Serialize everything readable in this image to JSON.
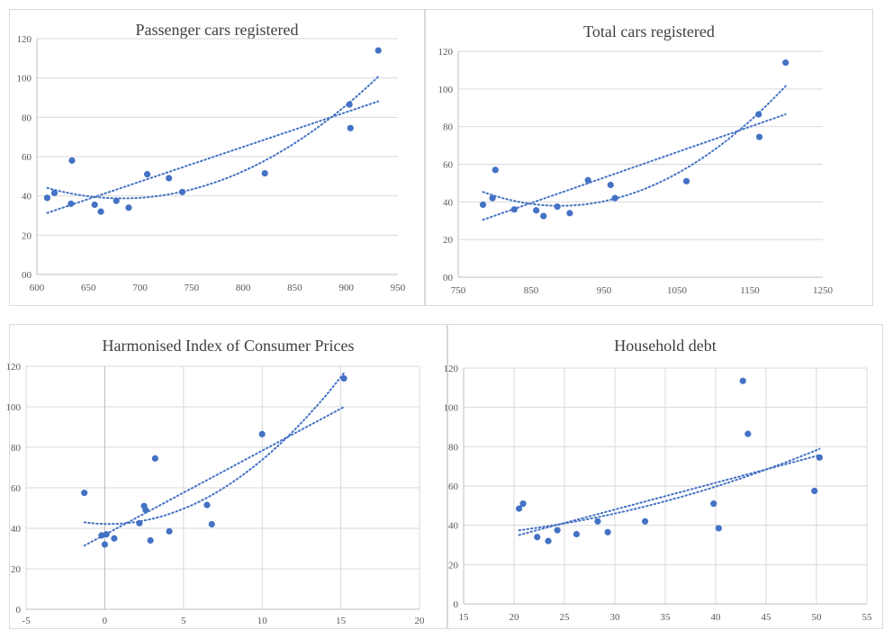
{
  "colors": {
    "point": "#4472c4",
    "grid": "#d9d9d9",
    "text": "#595959"
  },
  "chart_data": [
    {
      "type": "scatter",
      "title": "Passenger cars registered",
      "xlim": [
        600,
        950
      ],
      "ylim": [
        0,
        120
      ],
      "xticks": [
        "600",
        "650",
        "700",
        "750",
        "800",
        "850",
        "900",
        "950"
      ],
      "yticks": [
        "00",
        "20",
        "40",
        "60",
        "80",
        "100",
        "120"
      ],
      "grid": "horizontal",
      "trendlines": [
        "linear",
        "polynomial"
      ],
      "points": [
        [
          610,
          39
        ],
        [
          617,
          41.5
        ],
        [
          633,
          36
        ],
        [
          634,
          58
        ],
        [
          656,
          35.5
        ],
        [
          662,
          32
        ],
        [
          677,
          37.5
        ],
        [
          689,
          34
        ],
        [
          707,
          51
        ],
        [
          728,
          49
        ],
        [
          741,
          42
        ],
        [
          821,
          51.5
        ],
        [
          903,
          86.5
        ],
        [
          904,
          74.5
        ],
        [
          931,
          114
        ]
      ]
    },
    {
      "type": "scatter",
      "title": "Total cars registered",
      "xlim": [
        750,
        1250
      ],
      "ylim": [
        0,
        120
      ],
      "xticks": [
        "750",
        "850",
        "950",
        "1050",
        "1150",
        "1250"
      ],
      "yticks": [
        "00",
        "20",
        "40",
        "60",
        "80",
        "100",
        "120"
      ],
      "grid": "horizontal",
      "trendlines": [
        "linear",
        "polynomial"
      ],
      "points": [
        [
          784,
          38.5
        ],
        [
          797,
          42
        ],
        [
          801,
          57
        ],
        [
          827,
          36
        ],
        [
          857,
          35.5
        ],
        [
          867,
          32.5
        ],
        [
          886,
          37.5
        ],
        [
          903,
          34
        ],
        [
          928,
          51.5
        ],
        [
          959,
          49
        ],
        [
          965,
          42
        ],
        [
          1063,
          51
        ],
        [
          1162,
          86.5
        ],
        [
          1163,
          74.5
        ],
        [
          1199,
          114
        ]
      ]
    },
    {
      "type": "scatter",
      "title": "Harmonised Index of Consumer Prices",
      "xlim": [
        -5,
        20
      ],
      "ylim": [
        0,
        120
      ],
      "xticks": [
        "-5",
        "0",
        "5",
        "10",
        "15",
        "20"
      ],
      "yticks": [
        "0",
        "20",
        "40",
        "60",
        "80",
        "100",
        "120"
      ],
      "grid": "both",
      "trendlines": [
        "linear",
        "polynomial"
      ],
      "points": [
        [
          -1.3,
          57.5
        ],
        [
          -0.2,
          36.5
        ],
        [
          0,
          32
        ],
        [
          0.1,
          37
        ],
        [
          0.6,
          35
        ],
        [
          2.2,
          42.5
        ],
        [
          2.5,
          51
        ],
        [
          2.6,
          49
        ],
        [
          2.9,
          34
        ],
        [
          3.2,
          74.5
        ],
        [
          4.1,
          38.5
        ],
        [
          6.5,
          51.5
        ],
        [
          6.8,
          42
        ],
        [
          10,
          86.5
        ],
        [
          15.2,
          114
        ]
      ]
    },
    {
      "type": "scatter",
      "title": "Household debt",
      "xlim": [
        15,
        55
      ],
      "ylim": [
        0,
        120
      ],
      "xticks": [
        "15",
        "20",
        "25",
        "30",
        "35",
        "40",
        "45",
        "50",
        "55"
      ],
      "yticks": [
        "0",
        "20",
        "40",
        "60",
        "80",
        "100",
        "120"
      ],
      "grid": "both",
      "trendlines": [
        "linear",
        "polynomial"
      ],
      "points": [
        [
          20.5,
          48.5
        ],
        [
          20.9,
          51
        ],
        [
          22.3,
          34
        ],
        [
          23.4,
          32
        ],
        [
          24.3,
          37.5
        ],
        [
          26.2,
          35.5
        ],
        [
          28.3,
          42
        ],
        [
          29.3,
          36.5
        ],
        [
          33,
          42
        ],
        [
          39.8,
          51
        ],
        [
          40.3,
          38.5
        ],
        [
          42.7,
          113.5
        ],
        [
          43.2,
          86.5
        ],
        [
          49.8,
          57.5
        ],
        [
          50.3,
          74.5
        ]
      ]
    }
  ]
}
